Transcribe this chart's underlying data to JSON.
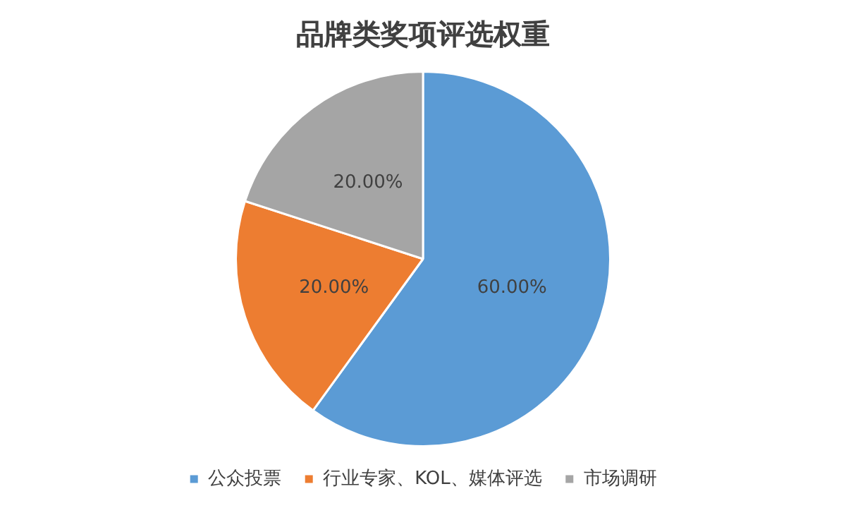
{
  "chart_data": {
    "type": "pie",
    "title": "品牌类奖项评选权重",
    "categories": [
      "公众投票",
      "行业专家、KOL、媒体评选",
      "市场调研"
    ],
    "values": [
      60,
      20,
      20
    ],
    "colors": [
      "#5b9bd5",
      "#ed7d31",
      "#a5a5a5"
    ],
    "value_labels": [
      "60.00%",
      "20.00%",
      "20.00%"
    ],
    "legend": "bottom"
  }
}
